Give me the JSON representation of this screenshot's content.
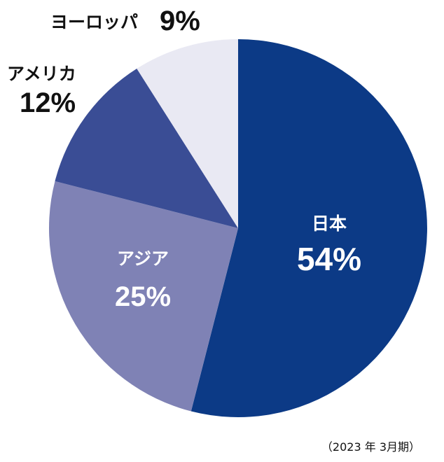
{
  "chart_data": {
    "type": "pie",
    "start": "12 o'clock",
    "direction": "clockwise",
    "slices": [
      {
        "name": "日本",
        "value": 54,
        "label": "54%",
        "color": "#0c3a86"
      },
      {
        "name": "アジア",
        "value": 25,
        "label": "25%",
        "color": "#7f82b5"
      },
      {
        "name": "アメリカ",
        "value": 12,
        "label": "12%",
        "color": "#3a4d95"
      },
      {
        "name": "ヨーロッパ",
        "value": 9,
        "label": "9%",
        "color": "#e9e9f3"
      }
    ],
    "note": "（2023 年 3月期）"
  },
  "colors": {
    "inside_label": "#ffffff",
    "outside_label": "#111111"
  }
}
